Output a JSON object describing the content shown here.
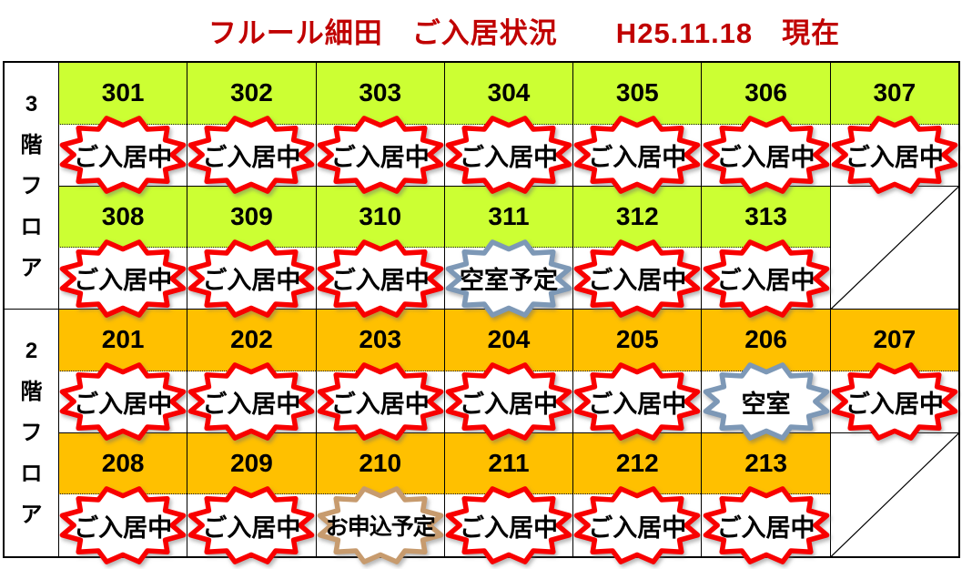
{
  "title": "フルール細田　ご入居状況　　H25.11.18　現在",
  "colors": {
    "title_text": "#C00000",
    "floor3_cell_bg": "#CCFF33",
    "floor2_cell_bg": "#FFC000",
    "grid_line": "#000000",
    "badge_fill": "#FFFFFF",
    "occupied_border": "#F80000",
    "vacant_border": "#7D98B6",
    "application_border": "#C79B6E"
  },
  "status_styles": {
    "occupied": {
      "label": "ご入居中",
      "border_color": "#F80000"
    },
    "vacancy_planned": {
      "label": "空室予定",
      "border_color": "#7D98B6"
    },
    "vacant": {
      "label": "空室",
      "border_color": "#7D98B6"
    },
    "application_planned": {
      "label": "お申込予定",
      "border_color": "#C79B6E"
    }
  },
  "floors": [
    {
      "label": "3階フロア",
      "cell_bg": "#CCFF33",
      "rows": [
        {
          "rooms": [
            {
              "number": "301",
              "status": "occupied"
            },
            {
              "number": "302",
              "status": "occupied"
            },
            {
              "number": "303",
              "status": "occupied"
            },
            {
              "number": "304",
              "status": "occupied"
            },
            {
              "number": "305",
              "status": "occupied"
            },
            {
              "number": "306",
              "status": "occupied"
            },
            {
              "number": "307",
              "status": "occupied"
            }
          ],
          "trailing_empty_diagonal": false
        },
        {
          "rooms": [
            {
              "number": "308",
              "status": "occupied"
            },
            {
              "number": "309",
              "status": "occupied"
            },
            {
              "number": "310",
              "status": "occupied"
            },
            {
              "number": "311",
              "status": "vacancy_planned"
            },
            {
              "number": "312",
              "status": "occupied"
            },
            {
              "number": "313",
              "status": "occupied"
            }
          ],
          "trailing_empty_diagonal": true
        }
      ]
    },
    {
      "label": "2階フロア",
      "cell_bg": "#FFC000",
      "rows": [
        {
          "rooms": [
            {
              "number": "201",
              "status": "occupied"
            },
            {
              "number": "202",
              "status": "occupied"
            },
            {
              "number": "203",
              "status": "occupied"
            },
            {
              "number": "204",
              "status": "occupied"
            },
            {
              "number": "205",
              "status": "occupied"
            },
            {
              "number": "206",
              "status": "vacant"
            },
            {
              "number": "207",
              "status": "occupied"
            }
          ],
          "trailing_empty_diagonal": false
        },
        {
          "rooms": [
            {
              "number": "208",
              "status": "occupied"
            },
            {
              "number": "209",
              "status": "occupied"
            },
            {
              "number": "210",
              "status": "application_planned"
            },
            {
              "number": "211",
              "status": "occupied"
            },
            {
              "number": "212",
              "status": "occupied"
            },
            {
              "number": "213",
              "status": "occupied"
            }
          ],
          "trailing_empty_diagonal": true
        }
      ]
    }
  ]
}
